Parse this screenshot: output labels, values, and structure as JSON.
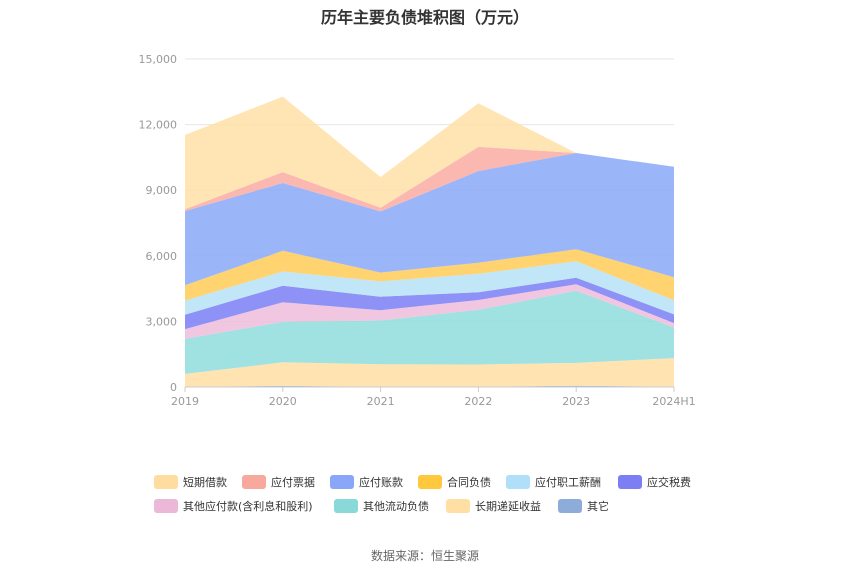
{
  "chart_data": {
    "type": "area",
    "stacked": true,
    "title": "历年主要负债堆积图（万元）",
    "categories": [
      "2019",
      "2020",
      "2021",
      "2022",
      "2023",
      "2024H1"
    ],
    "y_ticks": [
      "0",
      "3,000",
      "6,000",
      "9,000",
      "12,000",
      "15,000"
    ],
    "ylim": [
      0,
      15000
    ],
    "grid": true,
    "legend_position": "bottom",
    "series": [
      {
        "name": "其它",
        "color": "#8eaddd",
        "values": [
          20,
          50,
          20,
          20,
          60,
          20
        ]
      },
      {
        "name": "长期递延收益",
        "color": "#ffdfa5",
        "values": [
          580,
          1080,
          1020,
          1010,
          1040,
          1300
        ]
      },
      {
        "name": "其他流动负债",
        "color": "#8fdcdc",
        "values": [
          1600,
          1850,
          2000,
          2500,
          3300,
          1400
        ]
      },
      {
        "name": "其他应付款(含利息和股利)",
        "color": "#eebcdc",
        "values": [
          450,
          900,
          470,
          450,
          300,
          200
        ]
      },
      {
        "name": "应交税费",
        "color": "#7a7ef5",
        "values": [
          650,
          750,
          620,
          350,
          300,
          400
        ]
      },
      {
        "name": "应付职工薪酬",
        "color": "#b5e2f7",
        "values": [
          650,
          650,
          700,
          850,
          750,
          650
        ]
      },
      {
        "name": "合同负债",
        "color": "#ffcd57",
        "values": [
          700,
          950,
          400,
          500,
          550,
          1050
        ]
      },
      {
        "name": "应付账款",
        "color": "#8aa9f7",
        "values": [
          3400,
          3100,
          2800,
          4200,
          4400,
          5050
        ]
      },
      {
        "name": "应付票据",
        "color": "#f9aca3",
        "values": [
          80,
          500,
          170,
          1100,
          0,
          0
        ]
      },
      {
        "name": "短期借款",
        "color": "#ffe0a6",
        "values": [
          3400,
          3450,
          1400,
          2000,
          0,
          0
        ]
      }
    ]
  },
  "legend": [
    {
      "label": "短期借款",
      "color": "#ffdca0"
    },
    {
      "label": "应付票据",
      "color": "#f9a89e"
    },
    {
      "label": "应付账款",
      "color": "#8aa6f9"
    },
    {
      "label": "合同负债",
      "color": "#ffc83d"
    },
    {
      "label": "应付职工薪酬",
      "color": "#b0e0f9"
    },
    {
      "label": "应交税费",
      "color": "#7b7ff3"
    },
    {
      "label": "其他应付款(含利息和股利)",
      "color": "#ebb8d8"
    },
    {
      "label": "其他流动负债",
      "color": "#8ad9d9"
    },
    {
      "label": "长期递延收益",
      "color": "#ffdfa3"
    },
    {
      "label": "其它",
      "color": "#8eacda"
    }
  ],
  "source": "数据来源：恒生聚源"
}
